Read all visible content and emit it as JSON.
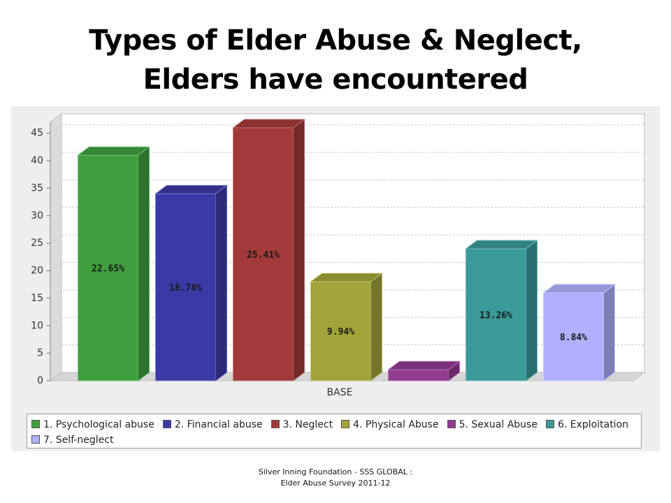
{
  "page": {
    "title_line1": "Types of Elder Abuse & Neglect,",
    "title_line2": "Elders  have encountered",
    "footer_line1": "Silver Inning Foundation - SSS GLOBAL :",
    "footer_line2": "Elder Abuse Survey 2011-12"
  },
  "chart_data": {
    "type": "bar",
    "categories": [
      "BASE"
    ],
    "xlabel": "BASE",
    "ylabel": "",
    "ylim": [
      0,
      47
    ],
    "yticks": [
      0,
      5,
      10,
      15,
      20,
      25,
      30,
      35,
      40,
      45
    ],
    "grid": true,
    "legend_position": "bottom",
    "series": [
      {
        "name": "1. Psychological abuse",
        "value": 41,
        "label": "22.65%",
        "color": "#3f9f3f"
      },
      {
        "name": "2. Financial abuse",
        "value": 34,
        "label": "18.78%",
        "color": "#3a3aa6"
      },
      {
        "name": "3. Neglect",
        "value": 46,
        "label": "25.41%",
        "color": "#a33a3a"
      },
      {
        "name": "4. Physical Abuse",
        "value": 18,
        "label": "9.94%",
        "color": "#a3a33a"
      },
      {
        "name": "5. Sexual Abuse",
        "value": 2,
        "label": "",
        "color": "#933a93"
      },
      {
        "name": "6. Exploitation",
        "value": 24,
        "label": "13.26%",
        "color": "#3a9a9a"
      },
      {
        "name": "7. Self-neglect",
        "value": 16,
        "label": "8.84%",
        "color": "#b0b0ff"
      }
    ]
  }
}
